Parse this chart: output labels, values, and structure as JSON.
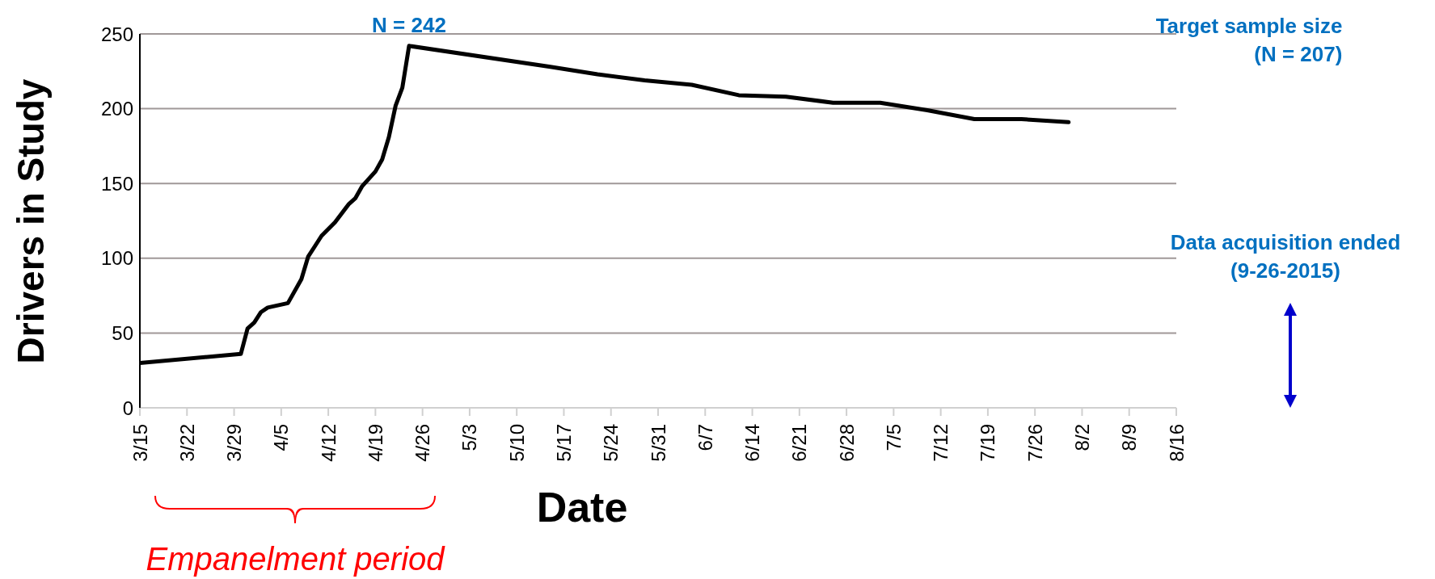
{
  "chart_data": {
    "type": "line",
    "xlabel": "Date",
    "ylabel": "Drivers in Study",
    "x": [
      "--03-15",
      "--03-30",
      "--03-31",
      "--04-01",
      "--04-02",
      "--04-03",
      "--04-06",
      "--04-08",
      "--04-09",
      "--04-10",
      "--04-11",
      "--04-13",
      "--04-15",
      "--04-16",
      "--04-17",
      "--04-19",
      "--04-20",
      "--04-21",
      "--04-22",
      "--04-23",
      "--04-24",
      "--05-15",
      "--05-22",
      "--05-29",
      "--06-05",
      "--06-12",
      "--06-19",
      "--06-26",
      "--07-03",
      "--07-10",
      "--07-17",
      "--07-24",
      "--07-31"
    ],
    "series": [
      {
        "color": "#000000",
        "values": [
          30,
          36,
          53,
          57,
          64,
          67,
          70,
          86,
          101,
          108,
          115,
          124,
          136,
          140,
          148,
          158,
          166,
          181,
          202,
          214,
          242,
          228,
          223,
          219,
          216,
          209,
          208,
          204,
          204,
          199,
          193,
          193,
          191
        ]
      }
    ],
    "xlim": [
      "--03-15",
      "--08-16"
    ],
    "xticks": [
      {
        "value": "--03-15",
        "label": "3/15"
      },
      {
        "value": "--03-22",
        "label": "3/22"
      },
      {
        "value": "--03-29",
        "label": "3/29"
      },
      {
        "value": "--04-05",
        "label": "4/5"
      },
      {
        "value": "--04-12",
        "label": "4/12"
      },
      {
        "value": "--04-19",
        "label": "4/19"
      },
      {
        "value": "--04-26",
        "label": "4/26"
      },
      {
        "value": "--05-03",
        "label": "5/3"
      },
      {
        "value": "--05-10",
        "label": "5/10"
      },
      {
        "value": "--05-17",
        "label": "5/17"
      },
      {
        "value": "--05-24",
        "label": "5/24"
      },
      {
        "value": "--05-31",
        "label": "5/31"
      },
      {
        "value": "--06-07",
        "label": "6/7"
      },
      {
        "value": "--06-14",
        "label": "6/14"
      },
      {
        "value": "--06-21",
        "label": "6/21"
      },
      {
        "value": "--06-28",
        "label": "6/28"
      },
      {
        "value": "--07-05",
        "label": "7/5"
      },
      {
        "value": "--07-12",
        "label": "7/12"
      },
      {
        "value": "--07-19",
        "label": "7/19"
      },
      {
        "value": "--07-26",
        "label": "7/26"
      },
      {
        "value": "--08-02",
        "label": "8/2"
      },
      {
        "value": "--08-09",
        "label": "8/9"
      },
      {
        "value": "--08-16",
        "label": "8/16"
      }
    ],
    "ylim": [
      0,
      250
    ],
    "yticks": [
      0,
      50,
      100,
      150,
      200,
      250
    ],
    "grid": "y",
    "marker": "none",
    "line_style": "solid",
    "annotations": [
      {
        "text": "N = 242",
        "x": "--04-24",
        "y": 242
      },
      "Target sample size\n(N = 207)",
      "Data acquisition ended\n(9-26-2015)",
      "Empanelment period"
    ]
  }
}
